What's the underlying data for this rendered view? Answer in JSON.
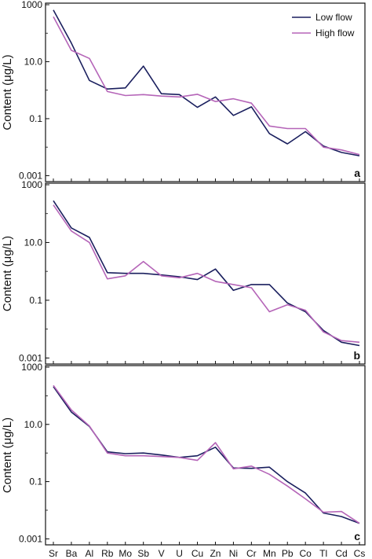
{
  "colors": {
    "low_flow": "#1a1f5e",
    "high_flow": "#b565b8",
    "axis": "#111111"
  },
  "chart_data": [
    {
      "type": "line",
      "panel_label": "a",
      "ylabel": "Content (μg/L)",
      "xlabel": "",
      "y_scale": "log",
      "ylim": [
        0.0007,
        1000
      ],
      "y_ticks": [
        {
          "value": 1000,
          "label": "1000"
        },
        {
          "value": 10,
          "label": "10.0"
        },
        {
          "value": 0.1,
          "label": "0.1"
        },
        {
          "value": 0.001,
          "label": "0.001"
        }
      ],
      "categories": [
        "Sr",
        "Ba",
        "Al",
        "Rb",
        "Mo",
        "Sb",
        "V",
        "U",
        "Cu",
        "Zn",
        "Ni",
        "Cr",
        "Mn",
        "Pb",
        "Co",
        "Tl",
        "Cd",
        "Cs"
      ],
      "legend": {
        "position": "top-right",
        "entries": [
          "Low flow",
          "High flow"
        ]
      },
      "grid": false,
      "series": [
        {
          "name": "Low flow",
          "values": [
            650,
            45,
            2.2,
            1.1,
            1.2,
            7,
            0.75,
            0.7,
            0.25,
            0.58,
            0.13,
            0.26,
            0.03,
            0.013,
            0.035,
            0.011,
            0.0065,
            0.005
          ]
        },
        {
          "name": "High flow",
          "values": [
            380,
            25,
            13,
            0.9,
            0.65,
            0.7,
            0.62,
            0.58,
            0.72,
            0.4,
            0.5,
            0.35,
            0.055,
            0.045,
            0.045,
            0.01,
            0.008,
            0.0055
          ]
        }
      ]
    },
    {
      "type": "line",
      "panel_label": "b",
      "ylabel": "Content (μg/L)",
      "xlabel": "",
      "y_scale": "log",
      "ylim": [
        0.0007,
        1000
      ],
      "y_ticks": [
        {
          "value": 1000,
          "label": "1000"
        },
        {
          "value": 10,
          "label": "10.0"
        },
        {
          "value": 0.1,
          "label": "0.1"
        },
        {
          "value": 0.001,
          "label": "0.001"
        }
      ],
      "categories": [
        "Sr",
        "Ba",
        "Al",
        "Rb",
        "Mo",
        "Sb",
        "V",
        "U",
        "Cu",
        "Zn",
        "Ni",
        "Cr",
        "Mn",
        "Pb",
        "Co",
        "Tl",
        "Cd",
        "Cs"
      ],
      "grid": false,
      "series": [
        {
          "name": "Low flow",
          "values": [
            280,
            32,
            15,
            0.9,
            0.85,
            0.85,
            0.75,
            0.65,
            0.52,
            1.2,
            0.22,
            0.35,
            0.35,
            0.08,
            0.04,
            0.009,
            0.0035,
            0.0027
          ]
        },
        {
          "name": "High flow",
          "values": [
            200,
            25,
            10,
            0.55,
            0.7,
            2.2,
            0.7,
            0.6,
            0.85,
            0.45,
            0.35,
            0.27,
            0.04,
            0.07,
            0.045,
            0.008,
            0.004,
            0.0035
          ]
        }
      ]
    },
    {
      "type": "line",
      "panel_label": "c",
      "ylabel": "Content (μg/L)",
      "xlabel": "",
      "y_scale": "log",
      "ylim": [
        0.0007,
        1000
      ],
      "y_ticks": [
        {
          "value": 1000,
          "label": "1000"
        },
        {
          "value": 10,
          "label": "10.0"
        },
        {
          "value": 0.1,
          "label": "0.1"
        },
        {
          "value": 0.001,
          "label": "0.001"
        }
      ],
      "categories": [
        "Sr",
        "Ba",
        "Al",
        "Rb",
        "Mo",
        "Sb",
        "V",
        "U",
        "Cu",
        "Zn",
        "Ni",
        "Cr",
        "Mn",
        "Pb",
        "Co",
        "Tl",
        "Cd",
        "Cs"
      ],
      "grid": false,
      "series": [
        {
          "name": "Low flow",
          "values": [
            210,
            27,
            8.5,
            1.1,
            0.95,
            1.0,
            0.85,
            0.7,
            0.8,
            1.6,
            0.3,
            0.29,
            0.32,
            0.1,
            0.04,
            0.008,
            0.006,
            0.0035
          ]
        },
        {
          "name": "High flow",
          "values": [
            230,
            32,
            8.8,
            1.0,
            0.8,
            0.8,
            0.75,
            0.7,
            0.55,
            2.3,
            0.28,
            0.35,
            0.18,
            0.07,
            0.025,
            0.0085,
            0.009,
            0.0035
          ]
        }
      ]
    }
  ]
}
